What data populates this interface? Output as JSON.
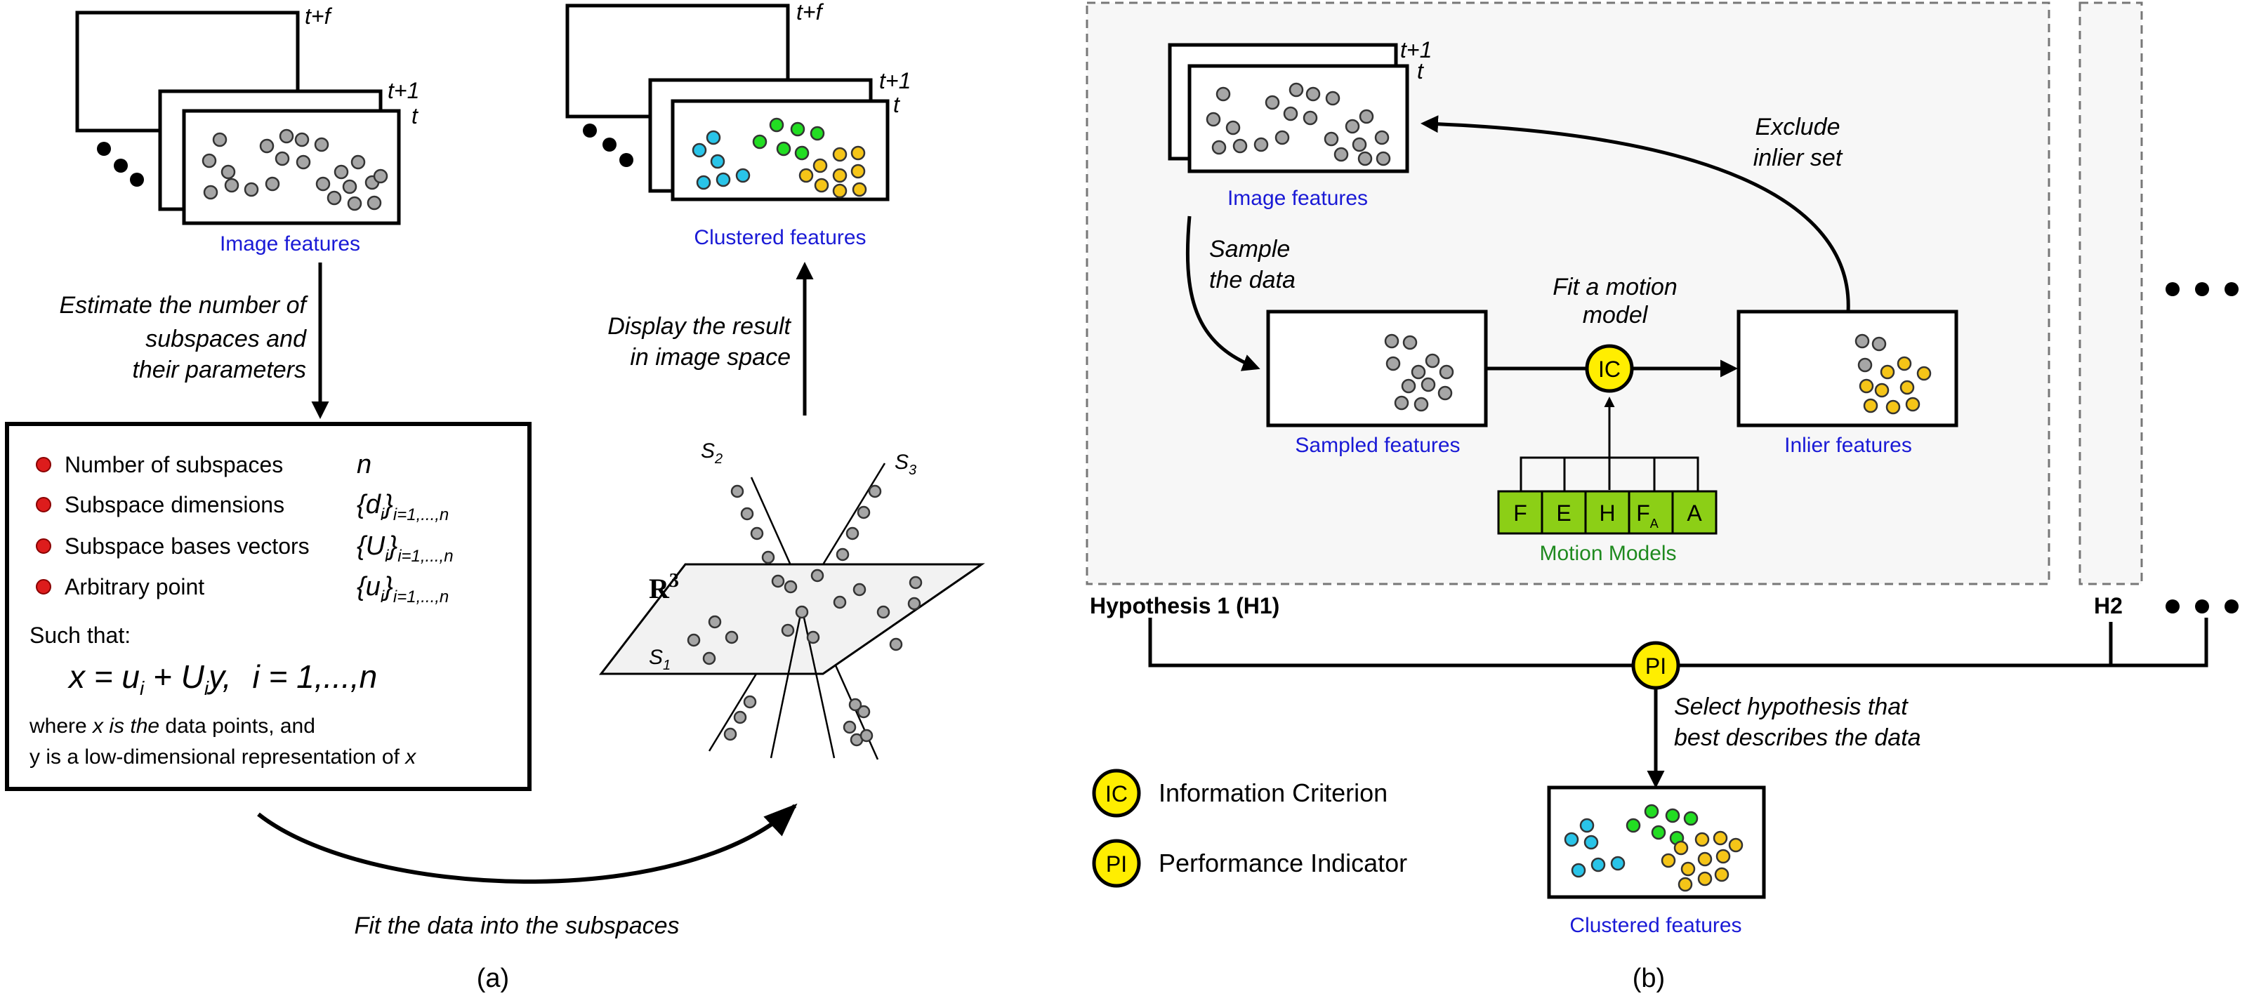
{
  "panel_a": {
    "frame_labels": {
      "tf": "t+f",
      "t1": "t+1",
      "t": "t"
    },
    "image_features": "Image features",
    "clustered_features": "Clustered features",
    "estimate_lines": [
      "Estimate the number of",
      "subspaces and",
      "their parameters"
    ],
    "display_lines": [
      "Display the result",
      "in image space"
    ],
    "bullets": [
      {
        "label": "Number of subspaces",
        "symbol": "n",
        "sub": ""
      },
      {
        "label": "Subspace dimensions",
        "symbol": "{d",
        "sub": "i=1,...,n"
      },
      {
        "label": "Subspace bases vectors",
        "symbol": "{U",
        "sub": "i=1,...,n"
      },
      {
        "label": "Arbitrary point",
        "symbol": "{u",
        "sub": "i=1,...,n"
      }
    ],
    "such_that": "Such that:",
    "equation": {
      "x": "x = u",
      "plus": " + U",
      "y": "y,",
      "range": "i = 1,...,n",
      "i": "i"
    },
    "where_line_1_pre": "where ",
    "where_line_1_it": "x is the",
    "where_line_1_post": " data points, and",
    "where_line_2_pre": "y is a low-dimensional representation of ",
    "where_line_2_it": "x",
    "space_label": "R",
    "space_exp": "3",
    "subspace_labels": {
      "s1": "S",
      "s2": "S",
      "s3": "S",
      "s1_sub": "1",
      "s2_sub": "2",
      "s3_sub": "3"
    },
    "fit_caption": "Fit the data into the subspaces",
    "caption": "(a)"
  },
  "panel_b": {
    "frame_labels": {
      "t1": "t+1",
      "t": "t"
    },
    "image_features": "Image features",
    "sample_lines": [
      "Sample",
      "the data"
    ],
    "fit_lines": [
      "Fit a motion",
      "model"
    ],
    "exclude_lines": [
      "Exclude",
      "inlier set"
    ],
    "sampled_features": "Sampled features",
    "inlier_features": "Inlier features",
    "ic": "IC",
    "motion_models": [
      "F",
      "E",
      "H",
      "F",
      "A"
    ],
    "fa_sub": "A",
    "motion_models_label": "Motion Models",
    "hypothesis_1": "Hypothesis  1 (H1)",
    "h2": "H2",
    "pi": "PI",
    "select_lines": [
      "Select hypothesis that",
      "best describes the data"
    ],
    "clustered_features": "Clustered features",
    "legend": [
      {
        "badge": "IC",
        "label": "Information Criterion"
      },
      {
        "badge": "PI",
        "label": "Performance Indicator"
      }
    ],
    "caption": "(b)"
  },
  "colors": {
    "gray_point": "#a6a6a6",
    "cyan_cluster": "#29c4e8",
    "green_cluster": "#22dd22",
    "yellow_cluster": "#f5c518",
    "red_bullet": "#dd1c1c",
    "badge_yellow": "#ffee00",
    "motion_green": "#8ccf16",
    "label_blue": "#1a1ad6",
    "label_green": "#1f8a1f"
  }
}
